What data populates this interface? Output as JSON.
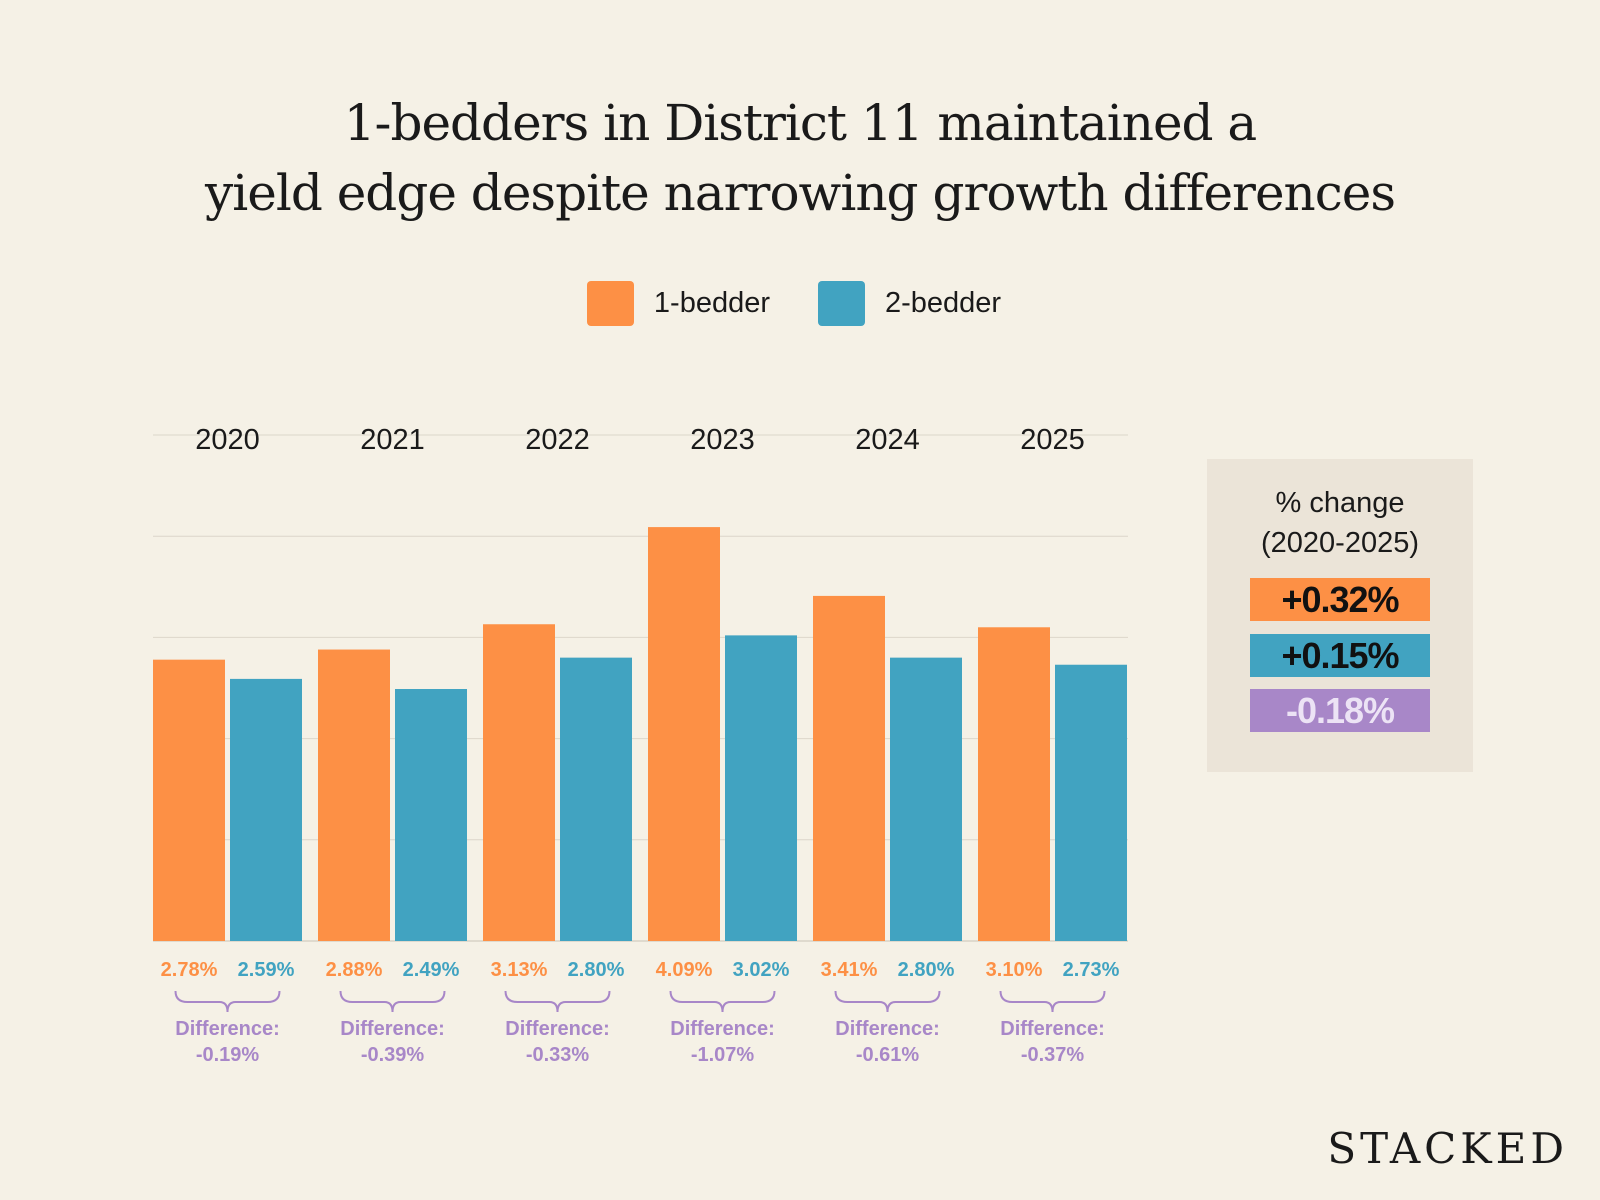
{
  "chart_data": {
    "type": "bar",
    "title": "1-bedders in District 11 maintained a yield edge despite narrowing growth differences",
    "title_lines": [
      "1-bedders in District 11 maintained a",
      "yield edge despite narrowing growth differences"
    ],
    "categories": [
      "2020",
      "2021",
      "2022",
      "2023",
      "2024",
      "2025"
    ],
    "series": [
      {
        "name": "1-bedder",
        "color": "#fd9045",
        "values": [
          2.78,
          2.88,
          3.13,
          4.09,
          3.41,
          3.1
        ],
        "labels": [
          "2.78%",
          "2.88%",
          "3.13%",
          "4.09%",
          "3.41%",
          "3.10%"
        ]
      },
      {
        "name": "2-bedder",
        "color": "#41a3c1",
        "values": [
          2.59,
          2.49,
          2.8,
          3.02,
          2.8,
          2.73
        ],
        "labels": [
          "2.59%",
          "2.49%",
          "2.80%",
          "3.02%",
          "2.80%",
          "2.73%"
        ]
      }
    ],
    "differences": {
      "label": "Difference:",
      "color": "#a887c8",
      "values": [
        "-0.19%",
        "-0.39%",
        "-0.33%",
        "-1.07%",
        "-0.61%",
        "-0.37%"
      ]
    },
    "ylim": [
      0,
      5
    ],
    "grid": true,
    "legend_position": "top",
    "xlabel": "",
    "ylabel": ""
  },
  "panel": {
    "title_line1": "% change",
    "title_line2": "(2020-2025)",
    "changes": [
      {
        "value": "+0.32%",
        "bg": "#fd9045",
        "fg": "#111111"
      },
      {
        "value": "+0.15%",
        "bg": "#41a3c1",
        "fg": "#111111"
      },
      {
        "value": "-0.18%",
        "bg": "#a887c8",
        "fg": "#ece3f5"
      }
    ]
  },
  "brand": "STACKED"
}
